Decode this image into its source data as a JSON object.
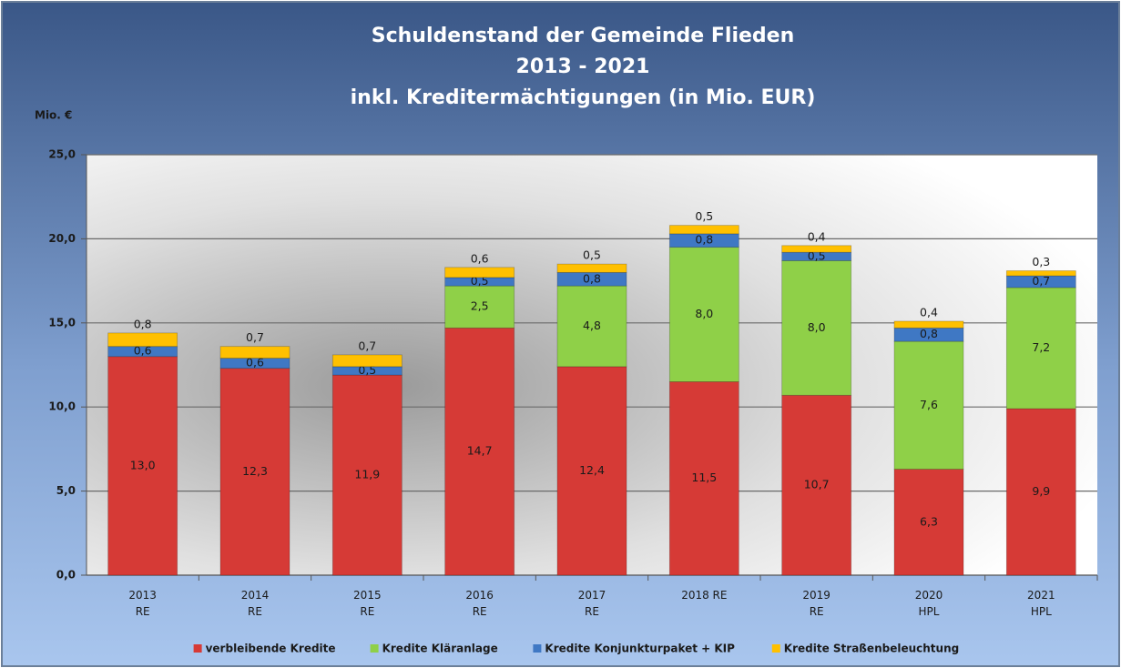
{
  "chart_data": {
    "type": "stacked_bar",
    "title": [
      "Schuldenstand der Gemeinde Flieden",
      "2013 - 2021",
      "inkl. Kreditermächtigungen (in Mio. EUR)"
    ],
    "y_label": "Mio. €",
    "categories": [
      "2013\nRE",
      "2014\nRE",
      "2015\nRE",
      "2016\nRE",
      "2017\nRE",
      "2018 RE",
      "2019\nRE",
      "2020\nHPL",
      "2021\nHPL"
    ],
    "series": [
      {
        "name": "verbleibende Kredite",
        "color": "#d63a36",
        "values": [
          13.0,
          12.3,
          11.9,
          14.7,
          12.4,
          11.5,
          10.7,
          6.3,
          9.9
        ],
        "value_labels": [
          "13,0",
          "12,3",
          "11,9",
          "14,7",
          "12,4",
          "11,5",
          "10,7",
          "6,3",
          "9,9"
        ]
      },
      {
        "name": "Kredite Kläranlage",
        "color": "#8fd048",
        "values": [
          null,
          null,
          null,
          2.5,
          4.8,
          8.0,
          8.0,
          7.6,
          7.2
        ],
        "value_labels": [
          null,
          null,
          null,
          "2,5",
          "4,8",
          "8,0",
          "8,0",
          "7,6",
          "7,2"
        ]
      },
      {
        "name": "Kredite Konjunkturpaket + KIP",
        "color": "#3f78c4",
        "values": [
          0.6,
          0.6,
          0.5,
          0.5,
          0.8,
          0.8,
          0.5,
          0.8,
          0.7
        ],
        "value_labels": [
          "0,6",
          "0,6",
          "0,5",
          "0,5",
          "0,8",
          "0,8",
          "0,5",
          "0,8",
          "0,7"
        ]
      },
      {
        "name": "Kredite Straßenbeleuchtung",
        "color": "#ffc000",
        "values": [
          0.8,
          0.7,
          0.7,
          0.6,
          0.5,
          0.5,
          0.4,
          0.4,
          0.3
        ],
        "value_labels": [
          "0,8",
          "0,7",
          "0,7",
          "0,6",
          "0,5",
          "0,5",
          "0,4",
          "0,4",
          "0,3"
        ]
      }
    ],
    "ylim": [
      0,
      25
    ],
    "yticks": [
      {
        "value": 0,
        "label": "0,0"
      },
      {
        "value": 5,
        "label": "5,0"
      },
      {
        "value": 10,
        "label": "10,0"
      },
      {
        "value": 15,
        "label": "15,0"
      },
      {
        "value": 20,
        "label": "20,0"
      },
      {
        "value": 25,
        "label": "25,0"
      }
    ],
    "grid": true,
    "legend": "bottom"
  }
}
